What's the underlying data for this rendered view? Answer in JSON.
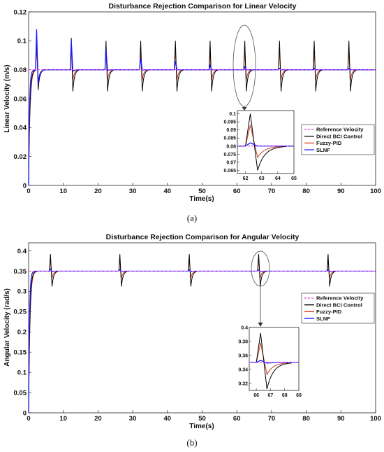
{
  "chart_data": [
    {
      "type": "line",
      "title": "Disturbance Rejection Comparison for Linear Velocity",
      "xlabel": "Time(s)",
      "ylabel": "Linear Velocity (m/s)",
      "xlim": [
        0,
        100
      ],
      "ylim": [
        0,
        0.12
      ],
      "xticks": [
        "0",
        "10",
        "20",
        "30",
        "40",
        "50",
        "60",
        "70",
        "80",
        "90",
        "100"
      ],
      "yticks": [
        "0",
        "0.02",
        "0.04",
        "0.06",
        "0.08",
        "0.1",
        "0.12"
      ],
      "reference": 0.08,
      "disturbance_times": [
        2,
        12,
        22,
        32,
        42,
        52,
        62,
        72,
        82,
        92
      ],
      "series": [
        {
          "name": "Reference Velocity",
          "color": "#e040e0",
          "style": "dashed",
          "peaks": [
            0.08,
            0.08,
            0.08,
            0.08,
            0.08,
            0.08,
            0.08,
            0.08,
            0.08,
            0.08
          ],
          "dips": [
            0.08,
            0.08,
            0.08,
            0.08,
            0.08,
            0.08,
            0.08,
            0.08,
            0.08,
            0.08
          ]
        },
        {
          "name": "Direct BCI Control",
          "color": "#000000",
          "style": "solid",
          "peaks": [
            0.104,
            0.102,
            0.1,
            0.1,
            0.1,
            0.1,
            0.1,
            0.1,
            0.1,
            0.1
          ],
          "dips": [
            0.066,
            0.065,
            0.065,
            0.065,
            0.065,
            0.065,
            0.065,
            0.065,
            0.065,
            0.065
          ]
        },
        {
          "name": "Fuzzy-PID",
          "color": "#d04020",
          "style": "solid",
          "peaks": [
            0.095,
            0.094,
            0.093,
            0.093,
            0.093,
            0.093,
            0.093,
            0.093,
            0.093,
            0.093
          ],
          "dips": [
            0.072,
            0.073,
            0.073,
            0.073,
            0.073,
            0.073,
            0.073,
            0.073,
            0.073,
            0.073
          ]
        },
        {
          "name": "SLNF",
          "color": "#1a1aff",
          "style": "solid",
          "peaks": [
            0.108,
            0.1,
            0.094,
            0.088,
            0.086,
            0.083,
            0.082,
            0.081,
            0.081,
            0.081
          ],
          "dips": [
            0.07,
            0.079,
            0.0795,
            0.0798,
            0.08,
            0.08,
            0.08,
            0.08,
            0.08,
            0.08
          ]
        }
      ],
      "inset": {
        "xlim": [
          61.5,
          65
        ],
        "ylim": [
          0.063,
          0.102
        ],
        "xticks": [
          "62",
          "63",
          "64",
          "65"
        ],
        "yticks": [
          "0.065",
          "0.07",
          "0.075",
          "0.08",
          "0.085",
          "0.09",
          "0.095",
          "0.1"
        ]
      },
      "caption": "(a)"
    },
    {
      "type": "line",
      "title": "Disturbance Rejection Comparison for Angular Velocity",
      "xlabel": "Time(s)",
      "ylabel": "Angular Velocity (rad/s)",
      "xlim": [
        0,
        100
      ],
      "ylim": [
        0,
        0.42
      ],
      "xticks": [
        "0",
        "10",
        "20",
        "30",
        "40",
        "50",
        "60",
        "70",
        "80",
        "90",
        "100"
      ],
      "yticks": [
        "0",
        "0.05",
        "0.1",
        "0.15",
        "0.2",
        "0.25",
        "0.3",
        "0.35",
        "0.4"
      ],
      "reference": 0.35,
      "disturbance_times": [
        6,
        26,
        46,
        66,
        86
      ],
      "series": [
        {
          "name": "Reference Velocity",
          "color": "#e040e0",
          "style": "dashed",
          "peaks": [
            0.35,
            0.35,
            0.35,
            0.35,
            0.35
          ],
          "dips": [
            0.35,
            0.35,
            0.35,
            0.35,
            0.35
          ]
        },
        {
          "name": "Direct BCI Control",
          "color": "#000000",
          "style": "solid",
          "peaks": [
            0.392,
            0.392,
            0.392,
            0.392,
            0.392
          ],
          "dips": [
            0.312,
            0.312,
            0.312,
            0.312,
            0.312
          ]
        },
        {
          "name": "Fuzzy-PID",
          "color": "#d04020",
          "style": "solid",
          "peaks": [
            0.378,
            0.378,
            0.378,
            0.378,
            0.378
          ],
          "dips": [
            0.333,
            0.333,
            0.333,
            0.333,
            0.333
          ]
        },
        {
          "name": "SLNF",
          "color": "#1a1aff",
          "style": "solid",
          "peaks": [
            0.355,
            0.354,
            0.353,
            0.353,
            0.353
          ],
          "dips": [
            0.349,
            0.349,
            0.349,
            0.349,
            0.349
          ]
        }
      ],
      "inset": {
        "xlim": [
          65.5,
          69
        ],
        "ylim": [
          0.31,
          0.4
        ],
        "xticks": [
          "66",
          "67",
          "68",
          "69"
        ],
        "yticks": [
          "0.32",
          "0.34",
          "0.36",
          "0.38",
          "0.4"
        ]
      },
      "caption": "(b)"
    }
  ]
}
